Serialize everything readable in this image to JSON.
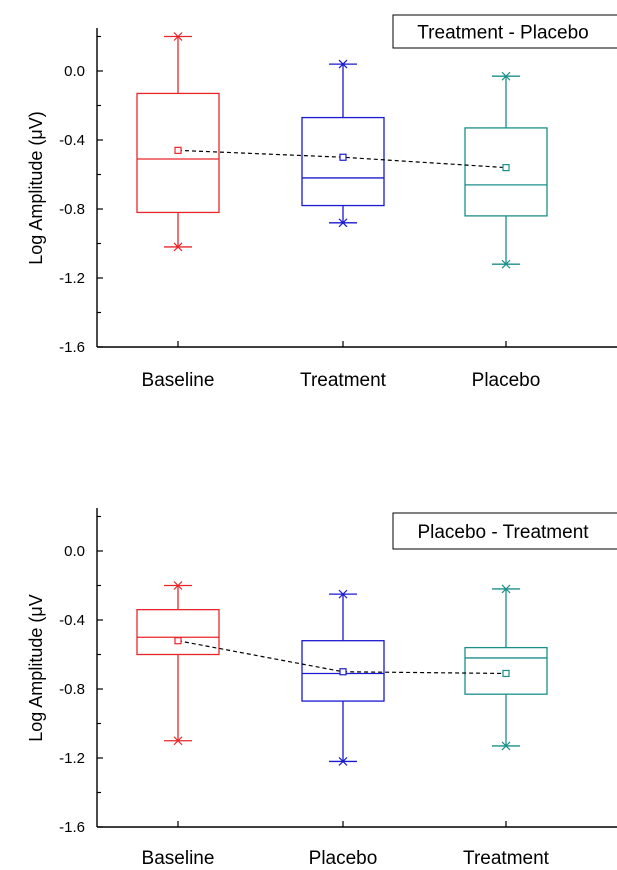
{
  "chart_data": [
    {
      "type": "box",
      "legend": "Treatment - Placebo",
      "ylabel": "Log Amplitude (μV)",
      "ylim": [
        -1.6,
        0.2
      ],
      "yticks": [
        "0.0",
        "-0.4",
        "-0.8",
        "-1.2",
        "-1.6"
      ],
      "categories": [
        "Baseline",
        "Treatment",
        "Placebo"
      ],
      "colors": [
        "#e8262a",
        "#1a1acf",
        "#1a8f8a"
      ],
      "boxes": [
        {
          "min": -1.02,
          "q1": -0.82,
          "median": -0.51,
          "q3": -0.13,
          "max": 0.2,
          "mean": -0.46
        },
        {
          "min": -0.88,
          "q1": -0.78,
          "median": -0.62,
          "q3": -0.27,
          "max": 0.04,
          "mean": -0.5
        },
        {
          "min": -1.12,
          "q1": -0.84,
          "median": -0.66,
          "q3": -0.33,
          "max": -0.03,
          "mean": -0.56
        }
      ]
    },
    {
      "type": "box",
      "legend": "Placebo - Treatment",
      "ylabel": "Log Amplitude (μV",
      "ylim": [
        -1.6,
        0.2
      ],
      "yticks": [
        "0.0",
        "-0.4",
        "-0.8",
        "-1.2",
        "-1.6"
      ],
      "categories": [
        "Baseline",
        "Placebo",
        "Treatment"
      ],
      "colors": [
        "#e8262a",
        "#1a1acf",
        "#1a8f8a"
      ],
      "boxes": [
        {
          "min": -1.1,
          "q1": -0.6,
          "median": -0.5,
          "q3": -0.34,
          "max": -0.2,
          "mean": -0.52
        },
        {
          "min": -1.22,
          "q1": -0.87,
          "median": -0.71,
          "q3": -0.52,
          "max": -0.25,
          "mean": -0.7
        },
        {
          "min": -1.13,
          "q1": -0.83,
          "median": -0.62,
          "q3": -0.56,
          "max": -0.22,
          "mean": -0.71
        }
      ]
    }
  ]
}
